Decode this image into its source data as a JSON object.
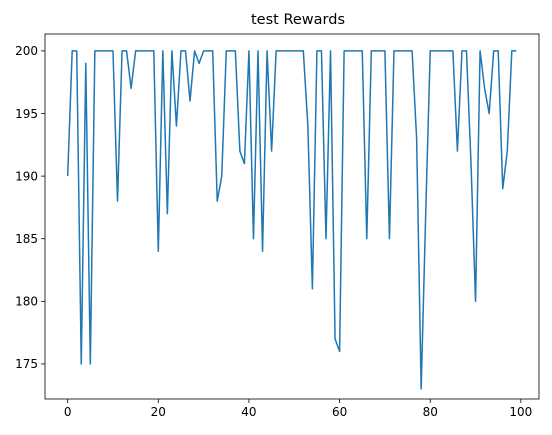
{
  "chart_data": {
    "type": "line",
    "title": "test Rewards",
    "xlabel": "",
    "ylabel": "",
    "xlim": [
      -5,
      104
    ],
    "ylim": [
      172.2,
      201.35
    ],
    "x_ticks": [
      0,
      20,
      40,
      60,
      80,
      100
    ],
    "y_ticks": [
      175,
      180,
      185,
      190,
      195,
      200
    ],
    "x_tick_labels": [
      "0",
      "20",
      "40",
      "60",
      "80",
      "100"
    ],
    "y_tick_labels": [
      "175",
      "180",
      "185",
      "190",
      "195",
      "200"
    ],
    "grid": false,
    "legend": "none",
    "line_color": "#1f77b4",
    "series": [
      {
        "values": [
          190,
          200,
          200,
          175,
          199,
          175,
          200,
          200,
          200,
          200,
          200,
          188,
          200,
          200,
          197,
          200,
          200,
          200,
          200,
          200,
          184,
          200,
          187,
          200,
          194,
          200,
          200,
          196,
          200,
          199,
          200,
          200,
          200,
          188,
          190,
          200,
          200,
          200,
          192,
          191,
          200,
          185,
          200,
          184,
          200,
          192,
          200,
          200,
          200,
          200,
          200,
          200,
          200,
          194,
          181,
          200,
          200,
          185,
          200,
          177,
          176,
          200,
          200,
          200,
          200,
          200,
          185,
          200,
          200,
          200,
          200,
          185,
          200,
          200,
          200,
          200,
          200,
          193,
          173,
          187,
          200,
          200,
          200,
          200,
          200,
          200,
          192,
          200,
          200,
          191,
          180,
          200,
          197,
          195,
          200,
          200,
          189,
          192,
          200,
          200
        ]
      }
    ]
  }
}
